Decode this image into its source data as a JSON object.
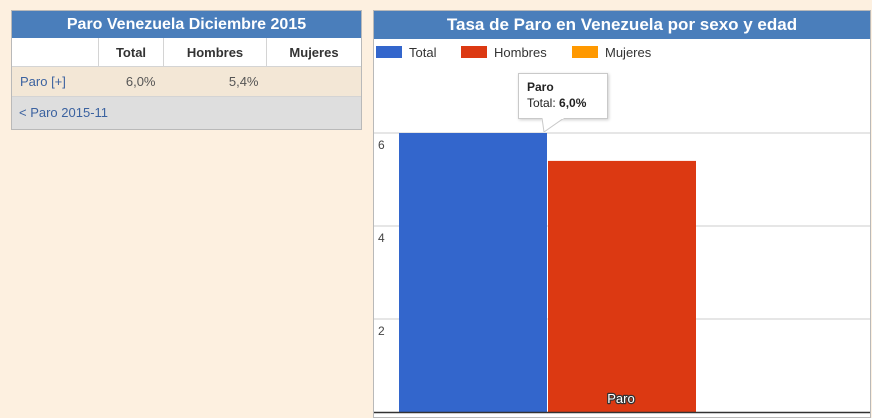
{
  "table_panel": {
    "title": "Paro Venezuela Diciembre 2015",
    "columns": [
      "",
      "Total",
      "Hombres",
      "Mujeres"
    ],
    "rows": [
      {
        "label": "Paro [+]",
        "total": "6,0%",
        "hombres": "5,4%",
        "mujeres": ""
      }
    ],
    "footer_link": "< Paro 2015-11"
  },
  "chart_panel": {
    "title": "Tasa de Paro en Venezuela por sexo y edad",
    "tooltip": {
      "title": "Paro",
      "label": "Total:",
      "value": "6,0%"
    }
  },
  "colors": {
    "header_blue": "#4a7ebb",
    "total": "#3366cc",
    "hombres": "#dc3912",
    "mujeres": "#ff9900"
  },
  "chart_data": {
    "type": "bar",
    "categories": [
      "Paro"
    ],
    "series": [
      {
        "name": "Total",
        "color": "#3366cc",
        "values": [
          6.0
        ]
      },
      {
        "name": "Hombres",
        "color": "#dc3912",
        "values": [
          5.4
        ]
      },
      {
        "name": "Mujeres",
        "color": "#ff9900",
        "values": [
          null
        ]
      }
    ],
    "yticks": [
      2,
      4,
      6
    ],
    "ylim": [
      0,
      6
    ],
    "grid": true,
    "legend": "top-left"
  }
}
